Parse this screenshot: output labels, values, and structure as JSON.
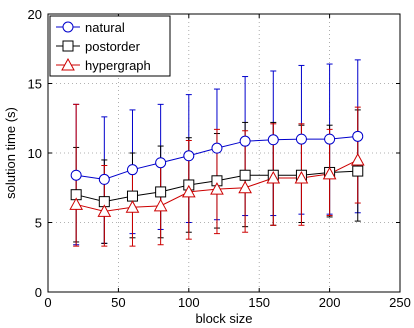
{
  "chart_data": {
    "type": "line",
    "title": "",
    "xlabel": "block size",
    "ylabel": "solution time (s)",
    "xlim": [
      0,
      250
    ],
    "ylim": [
      0,
      20
    ],
    "xticks": [
      0,
      50,
      100,
      150,
      200,
      250
    ],
    "yticks": [
      0,
      5,
      10,
      15,
      20
    ],
    "grid": "dotted",
    "legend_position": "top-left",
    "x": [
      20,
      40,
      60,
      80,
      100,
      120,
      140,
      160,
      180,
      200,
      220
    ],
    "series": [
      {
        "name": "natural",
        "color": "#0000cc",
        "marker": "circle",
        "values": [
          8.4,
          8.1,
          8.8,
          9.3,
          9.8,
          10.35,
          10.85,
          10.95,
          11.0,
          11.0,
          11.2
        ],
        "err_low": [
          3.4,
          3.5,
          4.2,
          4.5,
          5.0,
          5.2,
          5.5,
          5.5,
          5.6,
          5.6,
          5.7
        ],
        "err_high": [
          13.5,
          12.6,
          13.1,
          13.5,
          14.2,
          14.6,
          15.5,
          15.9,
          16.3,
          16.4,
          16.7
        ]
      },
      {
        "name": "postorder",
        "color": "#000000",
        "marker": "square",
        "values": [
          7.0,
          6.5,
          6.9,
          7.2,
          7.7,
          8.0,
          8.4,
          8.4,
          8.4,
          8.6,
          8.7
        ],
        "err_low": [
          3.6,
          3.5,
          3.9,
          3.9,
          4.3,
          4.6,
          4.7,
          4.8,
          5.0,
          5.4,
          5.1
        ],
        "err_high": [
          10.4,
          9.5,
          10.0,
          10.5,
          11.1,
          11.4,
          12.2,
          12.2,
          12.0,
          12.0,
          13.1
        ]
      },
      {
        "name": "hypergraph",
        "color": "#cc0000",
        "marker": "triangle",
        "values": [
          6.3,
          5.8,
          6.1,
          6.2,
          7.2,
          7.4,
          7.5,
          8.2,
          8.2,
          8.5,
          9.5
        ],
        "err_low": [
          3.3,
          3.3,
          3.3,
          3.4,
          3.8,
          4.2,
          4.3,
          4.8,
          4.8,
          5.5,
          6.4
        ],
        "err_high": [
          13.5,
          9.1,
          9.0,
          9.3,
          10.9,
          11.7,
          11.6,
          12.1,
          12.1,
          11.7,
          13.3
        ]
      }
    ]
  }
}
